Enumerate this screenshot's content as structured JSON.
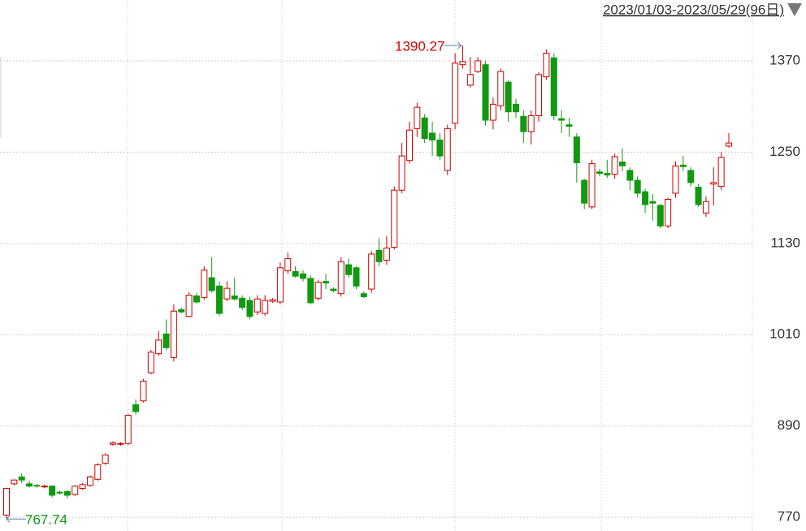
{
  "chart_data": {
    "type": "candlestick",
    "title": "2023/01/03-2023/05/29(96日)",
    "up_color": "#cc0000",
    "down_color": "#119911",
    "ylim": [
      752,
      1450
    ],
    "yticks": [
      770,
      890,
      1010,
      1130,
      1250,
      1370
    ],
    "grid": true,
    "high_label": 1390.27,
    "low_label": 767.74,
    "open": [
      773,
      814,
      823,
      814,
      812,
      810,
      811,
      803,
      804,
      800,
      808,
      812,
      820,
      841,
      866,
      866,
      867,
      918,
      923,
      960,
      985,
      1011,
      980,
      1043,
      1034,
      1061,
      1059,
      1085,
      1074,
      1057,
      1061,
      1058,
      1055,
      1040,
      1038,
      1054,
      1053,
      1094,
      1093,
      1090,
      1084,
      1058,
      1080,
      1070,
      1064,
      1102,
      1098,
      1064,
      1070,
      1121,
      1108,
      1125,
      1200,
      1239,
      1281,
      1295,
      1275,
      1266,
      1226,
      1288,
      1365,
      1338,
      1356,
      1365,
      1292,
      1311,
      1342,
      1313,
      1297,
      1277,
      1298,
      1349,
      1374,
      1294,
      1286,
      1270,
      1213,
      1178,
      1224,
      1222,
      1221,
      1237,
      1226,
      1213,
      1198,
      1185,
      1180,
      1153,
      1196,
      1233,
      1226,
      1204,
      1170,
      1208,
      1205,
      1258
    ],
    "high": [
      809,
      820,
      828,
      818,
      814,
      813,
      812,
      805,
      806,
      812,
      815,
      825,
      841,
      854,
      870,
      869,
      906,
      925,
      952,
      990,
      1015,
      1030,
      1050,
      1046,
      1066,
      1065,
      1100,
      1112,
      1080,
      1080,
      1085,
      1062,
      1060,
      1062,
      1062,
      1058,
      1105,
      1118,
      1100,
      1095,
      1088,
      1082,
      1090,
      1072,
      1112,
      1110,
      1100,
      1067,
      1120,
      1137,
      1140,
      1205,
      1262,
      1290,
      1315,
      1300,
      1290,
      1275,
      1286,
      1380,
      1390.27,
      1375,
      1375,
      1370,
      1322,
      1360,
      1345,
      1320,
      1305,
      1305,
      1355,
      1385,
      1380,
      1305,
      1295,
      1275,
      1215,
      1240,
      1228,
      1240,
      1248,
      1255,
      1230,
      1218,
      1202,
      1195,
      1182,
      1190,
      1238,
      1245,
      1230,
      1208,
      1192,
      1230,
      1250,
      1275
    ],
    "low": [
      767.74,
      812,
      815,
      809,
      809,
      808,
      796,
      800,
      795,
      798,
      806,
      810,
      818,
      839,
      864,
      864,
      865,
      905,
      921,
      958,
      982,
      990,
      975,
      1038,
      1033,
      1051,
      1056,
      1065,
      1035,
      1054,
      1055,
      1042,
      1030,
      1036,
      1035,
      1052,
      1050,
      1090,
      1085,
      1080,
      1050,
      1055,
      1070,
      1066,
      1060,
      1085,
      1070,
      1058,
      1065,
      1100,
      1102,
      1122,
      1196,
      1235,
      1270,
      1262,
      1245,
      1240,
      1220,
      1280,
      1360,
      1335,
      1354,
      1285,
      1280,
      1305,
      1290,
      1295,
      1262,
      1260,
      1290,
      1345,
      1292,
      1275,
      1270,
      1210,
      1175,
      1175,
      1218,
      1216,
      1215,
      1225,
      1200,
      1190,
      1170,
      1160,
      1150,
      1150,
      1190,
      1225,
      1205,
      1178,
      1165,
      1180,
      1200,
      1256
    ],
    "close": [
      808,
      819,
      819,
      811,
      811,
      811,
      799,
      802,
      799,
      811,
      813,
      823,
      839,
      852,
      868,
      867,
      904,
      909,
      949,
      987,
      1003,
      993,
      1041,
      1040,
      1062,
      1053,
      1095,
      1068,
      1038,
      1071,
      1057,
      1046,
      1034,
      1057,
      1055,
      1056,
      1098,
      1110,
      1087,
      1084,
      1052,
      1079,
      1078,
      1068,
      1106,
      1089,
      1074,
      1060,
      1116,
      1106,
      1124,
      1200,
      1245,
      1279,
      1309,
      1268,
      1266,
      1245,
      1281,
      1367,
      1369,
      1352,
      1370,
      1292,
      1313,
      1356,
      1303,
      1303,
      1277,
      1298,
      1352,
      1380,
      1298,
      1292,
      1284,
      1236,
      1183,
      1235,
      1222,
      1220,
      1244,
      1232,
      1213,
      1196,
      1181,
      1183,
      1153,
      1188,
      1232,
      1231,
      1210,
      1181,
      1185,
      1210,
      1243,
      1262
    ]
  }
}
